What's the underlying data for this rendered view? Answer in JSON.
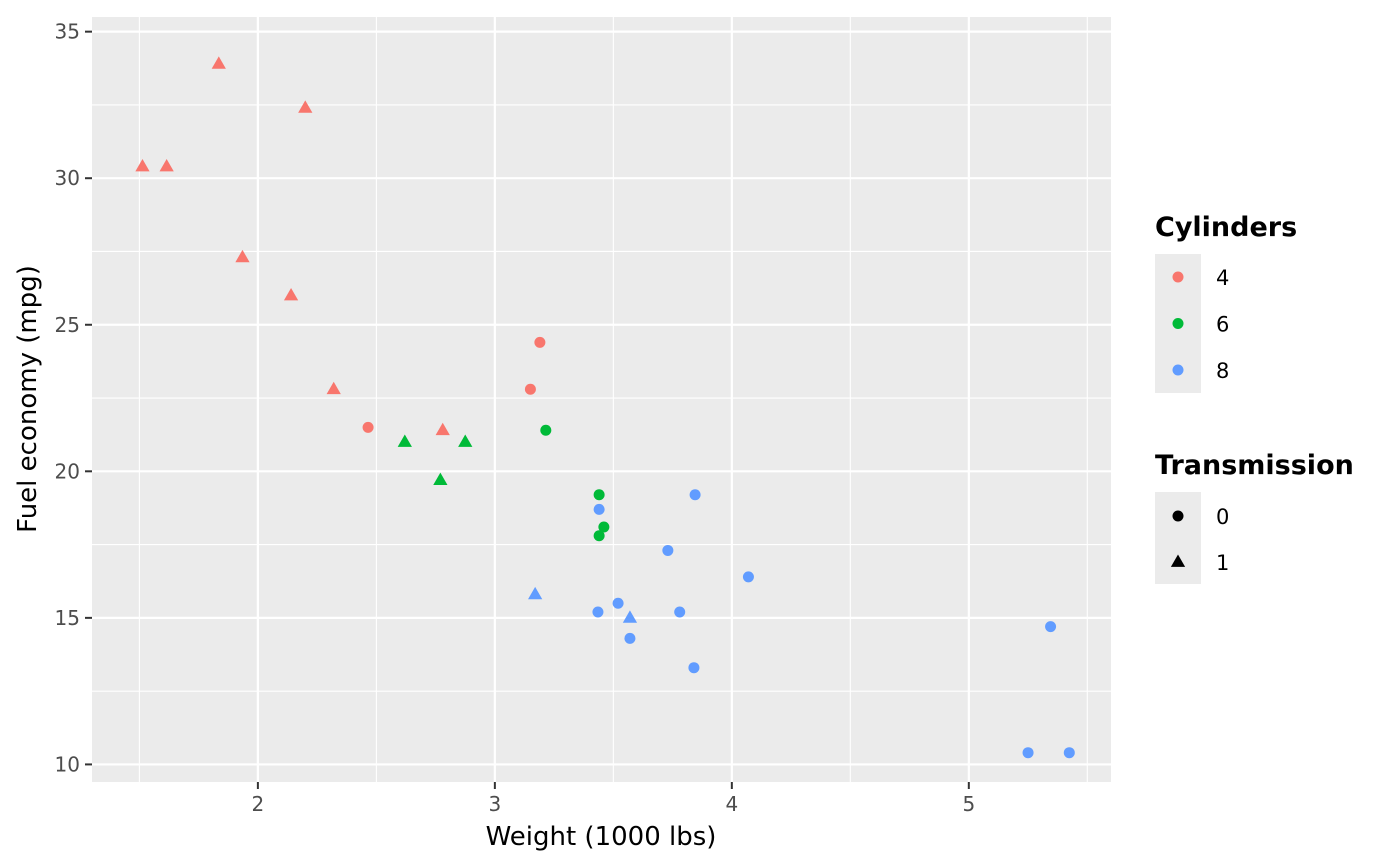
{
  "chart_data": {
    "type": "scatter",
    "title": "",
    "xlabel": "Weight (1000 lbs)",
    "ylabel": "Fuel economy (mpg)",
    "xlim": [
      1.3,
      5.6
    ],
    "ylim": [
      9.4,
      35.5
    ],
    "x_ticks": [
      2,
      3,
      4,
      5
    ],
    "y_ticks": [
      10,
      15,
      20,
      25,
      30,
      35
    ],
    "grid": true,
    "panel_background": "#ebebeb",
    "legend_position": "right",
    "color_legend": {
      "title": "Cylinders",
      "entries": [
        {
          "label": "4",
          "color": "#f8766d"
        },
        {
          "label": "6",
          "color": "#00ba38"
        },
        {
          "label": "8",
          "color": "#619cff"
        }
      ]
    },
    "shape_legend": {
      "title": "Transmission",
      "entries": [
        {
          "label": "0",
          "shape": "circle"
        },
        {
          "label": "1",
          "shape": "triangle"
        }
      ]
    },
    "points": [
      {
        "x": 2.62,
        "y": 21.0,
        "cyl": "6",
        "am": "1"
      },
      {
        "x": 2.875,
        "y": 21.0,
        "cyl": "6",
        "am": "1"
      },
      {
        "x": 2.32,
        "y": 22.8,
        "cyl": "4",
        "am": "1"
      },
      {
        "x": 3.215,
        "y": 21.4,
        "cyl": "6",
        "am": "0"
      },
      {
        "x": 3.44,
        "y": 18.7,
        "cyl": "8",
        "am": "0"
      },
      {
        "x": 3.46,
        "y": 18.1,
        "cyl": "6",
        "am": "0"
      },
      {
        "x": 3.57,
        "y": 14.3,
        "cyl": "8",
        "am": "0"
      },
      {
        "x": 3.19,
        "y": 24.4,
        "cyl": "4",
        "am": "0"
      },
      {
        "x": 3.15,
        "y": 22.8,
        "cyl": "4",
        "am": "0"
      },
      {
        "x": 3.44,
        "y": 19.2,
        "cyl": "6",
        "am": "0"
      },
      {
        "x": 3.44,
        "y": 17.8,
        "cyl": "6",
        "am": "0"
      },
      {
        "x": 4.07,
        "y": 16.4,
        "cyl": "8",
        "am": "0"
      },
      {
        "x": 3.73,
        "y": 17.3,
        "cyl": "8",
        "am": "0"
      },
      {
        "x": 3.78,
        "y": 15.2,
        "cyl": "8",
        "am": "0"
      },
      {
        "x": 5.25,
        "y": 10.4,
        "cyl": "8",
        "am": "0"
      },
      {
        "x": 5.424,
        "y": 10.4,
        "cyl": "8",
        "am": "0"
      },
      {
        "x": 5.345,
        "y": 14.7,
        "cyl": "8",
        "am": "0"
      },
      {
        "x": 2.2,
        "y": 32.4,
        "cyl": "4",
        "am": "1"
      },
      {
        "x": 1.615,
        "y": 30.4,
        "cyl": "4",
        "am": "1"
      },
      {
        "x": 1.835,
        "y": 33.9,
        "cyl": "4",
        "am": "1"
      },
      {
        "x": 2.465,
        "y": 21.5,
        "cyl": "4",
        "am": "0"
      },
      {
        "x": 3.52,
        "y": 15.5,
        "cyl": "8",
        "am": "0"
      },
      {
        "x": 3.435,
        "y": 15.2,
        "cyl": "8",
        "am": "0"
      },
      {
        "x": 3.84,
        "y": 13.3,
        "cyl": "8",
        "am": "0"
      },
      {
        "x": 3.845,
        "y": 19.2,
        "cyl": "8",
        "am": "0"
      },
      {
        "x": 1.935,
        "y": 27.3,
        "cyl": "4",
        "am": "1"
      },
      {
        "x": 2.14,
        "y": 26.0,
        "cyl": "4",
        "am": "1"
      },
      {
        "x": 1.513,
        "y": 30.4,
        "cyl": "4",
        "am": "1"
      },
      {
        "x": 3.17,
        "y": 15.8,
        "cyl": "8",
        "am": "1"
      },
      {
        "x": 2.77,
        "y": 19.7,
        "cyl": "6",
        "am": "1"
      },
      {
        "x": 3.57,
        "y": 15.0,
        "cyl": "8",
        "am": "1"
      },
      {
        "x": 2.78,
        "y": 21.4,
        "cyl": "4",
        "am": "1"
      }
    ]
  }
}
